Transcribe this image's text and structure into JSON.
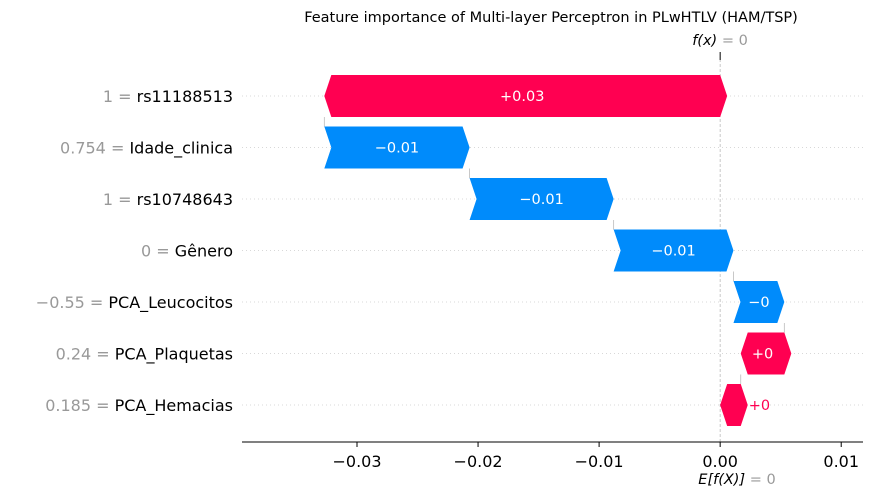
{
  "chart_data": {
    "type": "waterfall",
    "title": "Feature importance of Multi-layer Perceptron in PLwHTLV (HAM/TSP)",
    "fx_label": "f(x)",
    "fx_value": "= 0",
    "ex_label": "E[f(X)]",
    "ex_value": "= 0",
    "base_value": 0.0,
    "final_value": 0.0,
    "xlim": [
      -0.0395,
      0.0118
    ],
    "xticks": [
      -0.03,
      -0.02,
      -0.01,
      0.0,
      0.01
    ],
    "xtick_labels": [
      "−0.03",
      "−0.02",
      "−0.01",
      "0.00",
      "0.01"
    ],
    "features": [
      {
        "value": "1",
        "name": "rs11188513",
        "start": 0.0,
        "end": -0.0327,
        "label": "+0.03",
        "sign": "pos",
        "label_inside": true
      },
      {
        "value": "0.754",
        "name": "Idade_clinica",
        "start": -0.0327,
        "end": -0.0207,
        "label": "−0.01",
        "sign": "neg",
        "label_inside": true
      },
      {
        "value": "1",
        "name": "rs10748643",
        "start": -0.0207,
        "end": -0.0088,
        "label": "−0.01",
        "sign": "neg",
        "label_inside": true
      },
      {
        "value": "0",
        "name": "Gênero",
        "start": -0.0088,
        "end": 0.0011,
        "label": "−0.01",
        "sign": "neg",
        "label_inside": true
      },
      {
        "value": "−0.55",
        "name": "PCA_Leucocitos",
        "start": 0.0011,
        "end": 0.0053,
        "label": "−0",
        "sign": "neg",
        "label_inside": true
      },
      {
        "value": "0.24",
        "name": "PCA_Plaquetas",
        "start": 0.0053,
        "end": 0.0017,
        "label": "+0",
        "sign": "pos",
        "label_inside": true
      },
      {
        "value": "0.185",
        "name": "PCA_Hemacias",
        "start": 0.0017,
        "end": 0.0,
        "label": "+0",
        "sign": "pos",
        "label_inside": false
      }
    ],
    "colors": {
      "pos": "#ff0051",
      "neg": "#008bfb",
      "muted": "#999999",
      "text": "#000000"
    }
  }
}
